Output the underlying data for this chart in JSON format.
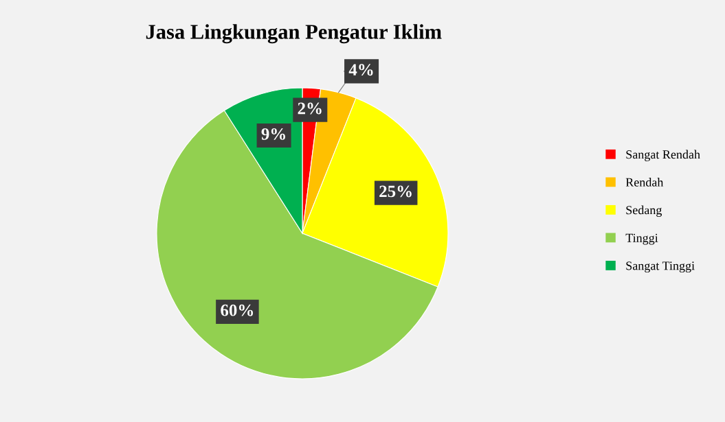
{
  "chart_data": {
    "type": "pie",
    "title": "Jasa Lingkungan Pengatur Iklim",
    "categories": [
      "Sangat Rendah",
      "Rendah",
      "Sedang",
      "Tinggi",
      "Sangat Tinggi"
    ],
    "values": [
      2,
      4,
      25,
      60,
      9
    ],
    "colors": [
      "#ff0000",
      "#ffc000",
      "#ffff00",
      "#92d050",
      "#00b050"
    ],
    "value_labels": [
      "2%",
      "4%",
      "25%",
      "60%",
      "9%"
    ],
    "legend": "right"
  }
}
